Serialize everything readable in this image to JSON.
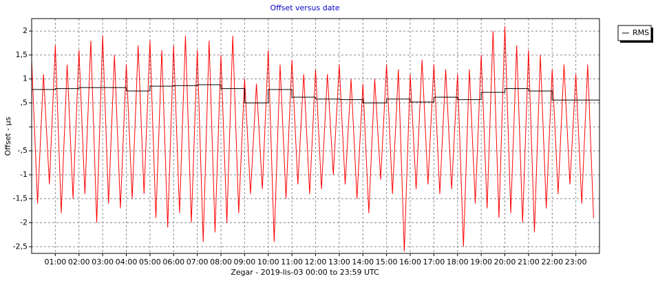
{
  "chart_data": {
    "type": "line",
    "title": "Offset versus date",
    "x_label": "Zegar  -  2019-lis-03 00:00 to 23:59 UTC",
    "y_label": "Offset - µs",
    "xlim": [
      0,
      24
    ],
    "ylim": [
      -2.64,
      2.26
    ],
    "xticks": [
      {
        "value": 1,
        "label": "01:00"
      },
      {
        "value": 2,
        "label": "02:00"
      },
      {
        "value": 3,
        "label": "03:00"
      },
      {
        "value": 4,
        "label": "04:00"
      },
      {
        "value": 5,
        "label": "05:00"
      },
      {
        "value": 6,
        "label": "06:00"
      },
      {
        "value": 7,
        "label": "07:00"
      },
      {
        "value": 8,
        "label": "08:00"
      },
      {
        "value": 9,
        "label": "09:00"
      },
      {
        "value": 10,
        "label": "10:00"
      },
      {
        "value": 11,
        "label": "11:00"
      },
      {
        "value": 12,
        "label": "12:00"
      },
      {
        "value": 13,
        "label": "13:00"
      },
      {
        "value": 14,
        "label": "14:00"
      },
      {
        "value": 15,
        "label": "15:00"
      },
      {
        "value": 16,
        "label": "16:00"
      },
      {
        "value": 17,
        "label": "17:00"
      },
      {
        "value": 18,
        "label": "18:00"
      },
      {
        "value": 19,
        "label": "19:00"
      },
      {
        "value": 20,
        "label": "20:00"
      },
      {
        "value": 21,
        "label": "21:00"
      },
      {
        "value": 22,
        "label": "22:00"
      },
      {
        "value": 23,
        "label": "23:00"
      }
    ],
    "yticks": [
      2,
      {
        "value": 1.5,
        "label": "1,5"
      },
      1,
      {
        "value": 0.5,
        "label": ",5"
      },
      {
        "value": 0,
        "label": null
      },
      {
        "value": -0.5,
        "label": "-,5"
      },
      -1,
      {
        "value": -1.5,
        "label": "-1,5"
      },
      -2,
      {
        "value": -2.5,
        "label": "-2,5"
      }
    ],
    "grid": true,
    "legend": "outside-right",
    "x": [
      0,
      0.25,
      0.5,
      0.75,
      1,
      1.25,
      1.5,
      1.75,
      2,
      2.25,
      2.5,
      2.75,
      3,
      3.25,
      3.5,
      3.75,
      4,
      4.25,
      4.5,
      4.75,
      5,
      5.25,
      5.5,
      5.75,
      6,
      6.25,
      6.5,
      6.75,
      7,
      7.25,
      7.5,
      7.75,
      8,
      8.25,
      8.5,
      8.75,
      9,
      9.25,
      9.5,
      9.75,
      10,
      10.25,
      10.5,
      10.75,
      11,
      11.25,
      11.5,
      11.75,
      12,
      12.25,
      12.5,
      12.75,
      13,
      13.25,
      13.5,
      13.75,
      14,
      14.25,
      14.5,
      14.75,
      15,
      15.25,
      15.5,
      15.75,
      16,
      16.25,
      16.5,
      16.75,
      17,
      17.25,
      17.5,
      17.75,
      18,
      18.25,
      18.5,
      18.75,
      19,
      19.25,
      19.5,
      19.75,
      20,
      20.25,
      20.5,
      20.75,
      21,
      21.25,
      21.5,
      21.75,
      22,
      22.25,
      22.5,
      22.75,
      23,
      23.25,
      23.5,
      23.75
    ],
    "series": [
      {
        "color": "#ff0000",
        "values": [
          1.4,
          -1.6,
          1.1,
          -1.2,
          1.7,
          -1.8,
          1.3,
          -1.5,
          1.6,
          -1.4,
          1.8,
          -2.0,
          1.9,
          -1.6,
          1.5,
          -1.7,
          1.3,
          -1.5,
          1.7,
          -1.4,
          1.8,
          -1.9,
          1.6,
          -2.1,
          1.7,
          -1.8,
          1.9,
          -2.0,
          1.6,
          -2.4,
          1.8,
          -2.2,
          1.5,
          -2.0,
          1.9,
          -1.8,
          1.0,
          -1.4,
          0.9,
          -1.3,
          1.6,
          -2.4,
          1.3,
          -1.5,
          1.4,
          -1.2,
          1.1,
          -1.4,
          1.2,
          -1.3,
          1.1,
          -1.0,
          1.3,
          -1.2,
          1.0,
          -1.5,
          0.9,
          -1.8,
          1.0,
          -1.1,
          1.3,
          -1.4,
          1.2,
          -2.6,
          1.1,
          -1.3,
          1.4,
          -1.2,
          1.3,
          -1.4,
          1.2,
          -1.3,
          1.1,
          -2.5,
          1.2,
          -1.6,
          1.5,
          -1.7,
          2.0,
          -1.9,
          2.1,
          -1.8,
          1.7,
          -2.0,
          1.6,
          -2.2,
          1.5,
          -1.7,
          1.2,
          -1.4,
          1.3,
          -1.2,
          1.1,
          -1.6,
          1.3,
          -1.9
        ]
      },
      {
        "name": "RMS",
        "color": "#000000",
        "step": true,
        "x": [
          0,
          1,
          2,
          3,
          4,
          5,
          6,
          7,
          8,
          9,
          10,
          11,
          12,
          13,
          14,
          15,
          16,
          17,
          18,
          19,
          20,
          21,
          22,
          23
        ],
        "values": [
          0.78,
          0.8,
          0.82,
          0.82,
          0.75,
          0.85,
          0.86,
          0.88,
          0.8,
          0.5,
          0.78,
          0.62,
          0.58,
          0.57,
          0.5,
          0.58,
          0.52,
          0.62,
          0.57,
          0.72,
          0.8,
          0.75,
          0.56,
          0.56
        ]
      }
    ]
  }
}
